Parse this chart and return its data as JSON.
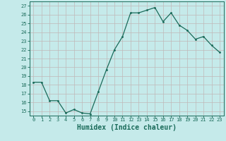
{
  "x": [
    0,
    1,
    2,
    3,
    4,
    5,
    6,
    7,
    8,
    9,
    10,
    11,
    12,
    13,
    14,
    15,
    16,
    17,
    18,
    19,
    20,
    21,
    22,
    23
  ],
  "y": [
    18.3,
    18.3,
    16.2,
    16.2,
    14.8,
    15.2,
    14.8,
    14.7,
    17.2,
    19.7,
    22.0,
    23.5,
    26.2,
    26.2,
    26.5,
    26.8,
    25.2,
    26.2,
    24.8,
    24.2,
    23.2,
    23.5,
    22.5,
    21.7
  ],
  "line_color": "#1a6b5a",
  "marker": ".",
  "markersize": 3,
  "bg_color": "#c5eaea",
  "grid_color": "#c0b8b8",
  "tick_color": "#1a6b5a",
  "label_color": "#1a6b5a",
  "xlabel": "Humidex (Indice chaleur)",
  "ylim": [
    14.5,
    27.5
  ],
  "xlim": [
    -0.5,
    23.5
  ],
  "yticks": [
    15,
    16,
    17,
    18,
    19,
    20,
    21,
    22,
    23,
    24,
    25,
    26,
    27
  ],
  "ytick_labels": [
    "15",
    "16",
    "17",
    "18",
    "19",
    "20",
    "21",
    "22",
    "23",
    "24",
    "25",
    "26",
    "27"
  ],
  "xticks": [
    0,
    1,
    2,
    3,
    4,
    5,
    6,
    7,
    8,
    9,
    10,
    11,
    12,
    13,
    14,
    15,
    16,
    17,
    18,
    19,
    20,
    21,
    22,
    23
  ],
  "xtick_labels": [
    "0",
    "1",
    "2",
    "3",
    "4",
    "5",
    "6",
    "7",
    "8",
    "9",
    "10",
    "11",
    "12",
    "13",
    "14",
    "15",
    "16",
    "17",
    "18",
    "19",
    "20",
    "21",
    "22",
    "23"
  ]
}
